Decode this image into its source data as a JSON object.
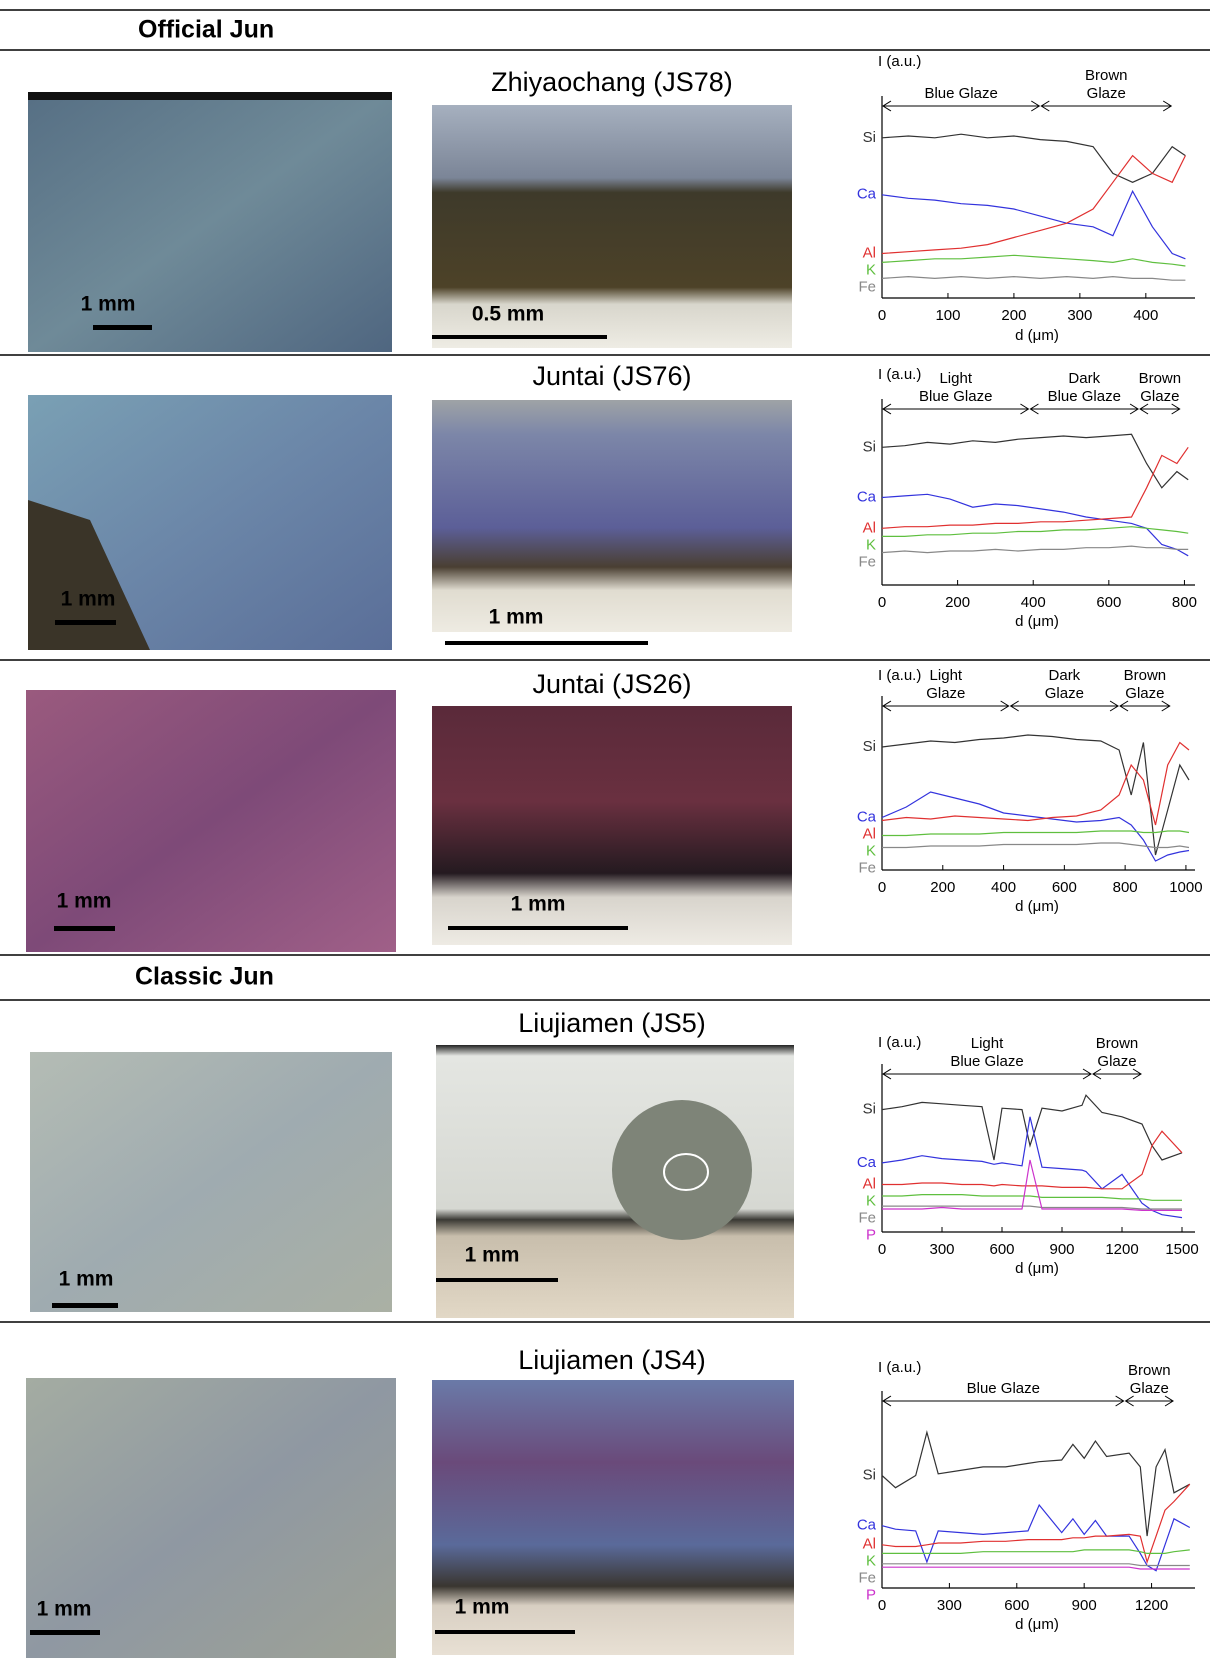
{
  "sections": [
    {
      "title": "Official Jun",
      "rows": [
        {
          "site": "Zhiyaochang (JS78)",
          "surface_scale": "1 mm",
          "section_scale": "0.5  mm"
        },
        {
          "site": "Juntai (JS76)",
          "surface_scale": "1 mm",
          "section_scale": "1 mm"
        },
        {
          "site": "Juntai (JS26)",
          "surface_scale": "1 mm",
          "section_scale": "1 mm"
        }
      ]
    },
    {
      "title": "Classic Jun",
      "rows": [
        {
          "site": "Liujiamen (JS5)",
          "surface_scale": "1 mm",
          "section_scale": "1 mm"
        },
        {
          "site": "Liujiamen (JS4)",
          "surface_scale": "1 mm",
          "section_scale": "1 mm"
        }
      ]
    }
  ],
  "chart_data": [
    {
      "type": "line",
      "y_label": "I (a.u.)",
      "x_label": "d (μm)",
      "xlim": [
        0,
        470
      ],
      "xticks": [
        0,
        100,
        200,
        300,
        400
      ],
      "ylim": [
        0,
        10
      ],
      "regions": [
        {
          "label": [
            "Blue Glaze"
          ],
          "start": 0,
          "end": 240
        },
        {
          "label": [
            "Brown",
            "Glaze"
          ],
          "start": 240,
          "end": 440
        }
      ],
      "x": [
        0,
        40,
        80,
        120,
        160,
        200,
        240,
        280,
        320,
        350,
        380,
        410,
        440,
        460
      ],
      "series": [
        {
          "name": "Si",
          "color": "#333333",
          "values": [
            9,
            9.1,
            9,
            9.2,
            9,
            9.1,
            8.9,
            8.8,
            8.5,
            7,
            6.5,
            7,
            8.5,
            8
          ]
        },
        {
          "name": "Ca",
          "color": "#3333dd",
          "values": [
            5.8,
            5.6,
            5.5,
            5.3,
            5.2,
            5,
            4.6,
            4.2,
            4,
            3.5,
            6,
            4,
            2.5,
            2.2
          ]
        },
        {
          "name": "Al",
          "color": "#e03030",
          "values": [
            2.5,
            2.6,
            2.7,
            2.8,
            3,
            3.4,
            3.8,
            4.2,
            5,
            6.5,
            8,
            7,
            6.5,
            8
          ]
        },
        {
          "name": "K",
          "color": "#5fbf3f",
          "values": [
            2,
            2.1,
            2.2,
            2.2,
            2.3,
            2.4,
            2.3,
            2.2,
            2.1,
            2,
            2.2,
            2,
            1.9,
            1.8
          ]
        },
        {
          "name": "Fe",
          "color": "#888888",
          "values": [
            1.1,
            1.2,
            1.1,
            1.2,
            1.1,
            1.2,
            1.1,
            1.2,
            1.1,
            1.2,
            1.1,
            1.1,
            1,
            1
          ]
        }
      ]
    },
    {
      "type": "line",
      "y_label": "I (a.u.)",
      "x_label": "d (μm)",
      "xlim": [
        0,
        820
      ],
      "xticks": [
        0,
        200,
        400,
        600,
        800
      ],
      "ylim": [
        0,
        10
      ],
      "regions": [
        {
          "label": [
            "Light",
            "Blue Glaze"
          ],
          "start": 0,
          "end": 390
        },
        {
          "label": [
            "Dark",
            "Blue Glaze"
          ],
          "start": 390,
          "end": 680
        },
        {
          "label": [
            "Brown",
            "Glaze"
          ],
          "start": 680,
          "end": 790
        }
      ],
      "x": [
        0,
        60,
        120,
        180,
        240,
        300,
        360,
        420,
        480,
        540,
        600,
        660,
        700,
        740,
        780,
        810
      ],
      "series": [
        {
          "name": "Si",
          "color": "#333333",
          "values": [
            8.5,
            8.6,
            8.8,
            8.7,
            8.9,
            8.8,
            9,
            9.1,
            9.2,
            9.1,
            9.2,
            9.3,
            7.5,
            6,
            7,
            6.5
          ]
        },
        {
          "name": "Ca",
          "color": "#3333dd",
          "values": [
            5.4,
            5.5,
            5.6,
            5.3,
            4.8,
            5,
            4.9,
            4.7,
            4.5,
            4.2,
            4,
            3.8,
            3.5,
            2.5,
            2.2,
            1.8
          ]
        },
        {
          "name": "Al",
          "color": "#e03030",
          "values": [
            3.5,
            3.6,
            3.6,
            3.7,
            3.7,
            3.8,
            3.8,
            3.9,
            3.9,
            4,
            4.1,
            4.2,
            6,
            8,
            7.5,
            8.5
          ]
        },
        {
          "name": "K",
          "color": "#5fbf3f",
          "values": [
            3,
            3,
            3.1,
            3.1,
            3.2,
            3.2,
            3.3,
            3.3,
            3.4,
            3.4,
            3.5,
            3.6,
            3.5,
            3.4,
            3.3,
            3.2
          ]
        },
        {
          "name": "Fe",
          "color": "#888888",
          "values": [
            2,
            2.1,
            2,
            2.1,
            2.1,
            2.2,
            2.1,
            2.2,
            2.2,
            2.3,
            2.3,
            2.4,
            2.3,
            2.3,
            2.2,
            2.2
          ]
        }
      ]
    },
    {
      "type": "line",
      "y_label": "I (a.u.)",
      "x_label": "d (μm)",
      "xlim": [
        0,
        1020
      ],
      "xticks": [
        0,
        200,
        400,
        600,
        800,
        1000
      ],
      "ylim": [
        0,
        10
      ],
      "regions": [
        {
          "label": [
            "Light",
            "Glaze"
          ],
          "start": 0,
          "end": 420
        },
        {
          "label": [
            "Dark",
            "Glaze"
          ],
          "start": 420,
          "end": 780
        },
        {
          "label": [
            "Brown",
            "Glaze"
          ],
          "start": 780,
          "end": 950
        }
      ],
      "x": [
        0,
        80,
        160,
        240,
        320,
        400,
        480,
        560,
        640,
        720,
        780,
        820,
        860,
        900,
        940,
        980,
        1010
      ],
      "series": [
        {
          "name": "Si",
          "color": "#333333",
          "values": [
            8.2,
            8.4,
            8.6,
            8.5,
            8.7,
            8.8,
            9,
            8.9,
            8.7,
            8.6,
            8,
            5,
            8.5,
            1,
            4,
            7,
            6
          ]
        },
        {
          "name": "Ca",
          "color": "#3333dd",
          "values": [
            3.5,
            4.2,
            5.2,
            4.8,
            4.4,
            3.8,
            3.6,
            3.4,
            3.2,
            3.3,
            3.5,
            3,
            2,
            0.6,
            1,
            1.2,
            1.3
          ]
        },
        {
          "name": "Al",
          "color": "#e03030",
          "values": [
            3.3,
            3.5,
            3.4,
            3.6,
            3.5,
            3.4,
            3.3,
            3.5,
            3.6,
            4,
            5,
            7,
            6,
            3,
            7,
            8.5,
            8
          ]
        },
        {
          "name": "K",
          "color": "#5fbf3f",
          "values": [
            2.3,
            2.3,
            2.4,
            2.4,
            2.4,
            2.5,
            2.5,
            2.5,
            2.5,
            2.6,
            2.6,
            2.6,
            2.5,
            2.5,
            2.6,
            2.6,
            2.5
          ]
        },
        {
          "name": "Fe",
          "color": "#888888",
          "values": [
            1.5,
            1.5,
            1.6,
            1.6,
            1.6,
            1.7,
            1.7,
            1.7,
            1.7,
            1.8,
            1.8,
            1.7,
            1.6,
            1.5,
            1.5,
            1.6,
            1.5
          ]
        }
      ]
    },
    {
      "type": "line",
      "y_label": "I (a.u.)",
      "x_label": "d (μm)",
      "xlim": [
        0,
        1550
      ],
      "xticks": [
        0,
        300,
        600,
        900,
        1200,
        1500
      ],
      "ylim": [
        0,
        10
      ],
      "regions": [
        {
          "label": [
            "Light",
            "Blue Glaze"
          ],
          "start": 0,
          "end": 1050
        },
        {
          "label": [
            "Brown",
            "Glaze"
          ],
          "start": 1050,
          "end": 1300
        }
      ],
      "x": [
        0,
        100,
        200,
        300,
        400,
        500,
        560,
        600,
        700,
        740,
        800,
        900,
        1000,
        1020,
        1100,
        1200,
        1300,
        1350,
        1400,
        1500
      ],
      "series": [
        {
          "name": "Si",
          "color": "#333333",
          "values": [
            8.5,
            8.7,
            9,
            8.9,
            8.8,
            8.7,
            5,
            8.6,
            8.5,
            6,
            8.6,
            8.4,
            8.8,
            9.5,
            8.3,
            8,
            7.5,
            6,
            5,
            5.5
          ]
        },
        {
          "name": "Ca",
          "color": "#3333dd",
          "values": [
            4.8,
            5,
            5.3,
            5.1,
            5,
            4.9,
            4.7,
            4.8,
            4.6,
            8,
            4.5,
            4.4,
            4.3,
            4.2,
            3,
            4,
            2,
            1.5,
            1.2,
            1
          ]
        },
        {
          "name": "Al",
          "color": "#e03030",
          "values": [
            3.3,
            3.3,
            3.4,
            3.4,
            3.3,
            3.3,
            3.2,
            3.3,
            3.2,
            3.2,
            3.2,
            3.1,
            3.1,
            3.1,
            3,
            3,
            4,
            6,
            7,
            5.5
          ]
        },
        {
          "name": "K",
          "color": "#5fbf3f",
          "values": [
            2.5,
            2.5,
            2.6,
            2.6,
            2.6,
            2.5,
            2.5,
            2.5,
            2.5,
            2.5,
            2.4,
            2.4,
            2.4,
            2.4,
            2.4,
            2.3,
            2.3,
            2.2,
            2.2,
            2.2
          ]
        },
        {
          "name": "Fe",
          "color": "#888888",
          "values": [
            1.8,
            1.8,
            1.8,
            1.8,
            1.8,
            1.8,
            1.8,
            1.8,
            1.8,
            1.8,
            1.7,
            1.7,
            1.7,
            1.7,
            1.7,
            1.7,
            1.6,
            1.6,
            1.6,
            1.6
          ]
        },
        {
          "name": "P",
          "color": "#cc33cc",
          "values": [
            1.6,
            1.6,
            1.6,
            1.7,
            1.6,
            1.6,
            1.6,
            1.6,
            1.6,
            5,
            1.6,
            1.6,
            1.6,
            1.6,
            1.6,
            1.6,
            1.5,
            1.5,
            1.5,
            1.5
          ]
        }
      ]
    },
    {
      "type": "line",
      "y_label": "I (a.u.)",
      "x_label": "d (μm)",
      "xlim": [
        0,
        1380
      ],
      "xticks": [
        0,
        300,
        600,
        900,
        1200
      ],
      "ylim": [
        0,
        10
      ],
      "regions": [
        {
          "label": [
            "Blue Glaze"
          ],
          "start": 0,
          "end": 1080
        },
        {
          "label": [
            "Brown",
            "Glaze"
          ],
          "start": 1080,
          "end": 1300
        }
      ],
      "x": [
        0,
        60,
        150,
        200,
        250,
        350,
        450,
        550,
        650,
        700,
        800,
        850,
        900,
        950,
        1000,
        1100,
        1150,
        1180,
        1220,
        1260,
        1300,
        1370
      ],
      "series": [
        {
          "name": "Si",
          "color": "#333333",
          "values": [
            6.5,
            5.8,
            6.5,
            9,
            6.6,
            6.8,
            7,
            7,
            7.2,
            7.3,
            7.4,
            8.3,
            7.5,
            8.5,
            7.6,
            7.8,
            7,
            3,
            7,
            8,
            5.5,
            6
          ]
        },
        {
          "name": "Ca",
          "color": "#3333dd",
          "values": [
            3.6,
            3.4,
            3.3,
            1.5,
            3.3,
            3.2,
            3.1,
            3.2,
            3.3,
            4.8,
            3.2,
            4,
            3.1,
            3.9,
            3,
            3,
            2,
            1.3,
            1,
            2.5,
            4,
            3.5
          ]
        },
        {
          "name": "Al",
          "color": "#e03030",
          "values": [
            2.5,
            2.4,
            2.4,
            2.5,
            2.6,
            2.6,
            2.7,
            2.7,
            2.8,
            2.8,
            2.8,
            2.9,
            2.9,
            3,
            3,
            3.1,
            3,
            1.5,
            3,
            4.5,
            5,
            6
          ]
        },
        {
          "name": "K",
          "color": "#5fbf3f",
          "values": [
            2,
            2,
            2,
            2,
            2,
            2,
            2.1,
            2.1,
            2.1,
            2.1,
            2.1,
            2.1,
            2.2,
            2.2,
            2.2,
            2.2,
            2.1,
            2,
            2,
            2,
            2.1,
            2.2
          ]
        },
        {
          "name": "Fe",
          "color": "#888888",
          "values": [
            1.4,
            1.4,
            1.4,
            1.4,
            1.4,
            1.4,
            1.4,
            1.4,
            1.4,
            1.4,
            1.4,
            1.4,
            1.4,
            1.4,
            1.4,
            1.4,
            1.3,
            1.3,
            1.3,
            1.3,
            1.3,
            1.3
          ]
        },
        {
          "name": "P",
          "color": "#cc33cc",
          "values": [
            1.2,
            1.2,
            1.2,
            1.2,
            1.2,
            1.2,
            1.2,
            1.2,
            1.2,
            1.2,
            1.2,
            1.2,
            1.2,
            1.2,
            1.2,
            1.2,
            1.1,
            1.1,
            1.1,
            1.1,
            1.1,
            1.1
          ]
        }
      ]
    }
  ]
}
